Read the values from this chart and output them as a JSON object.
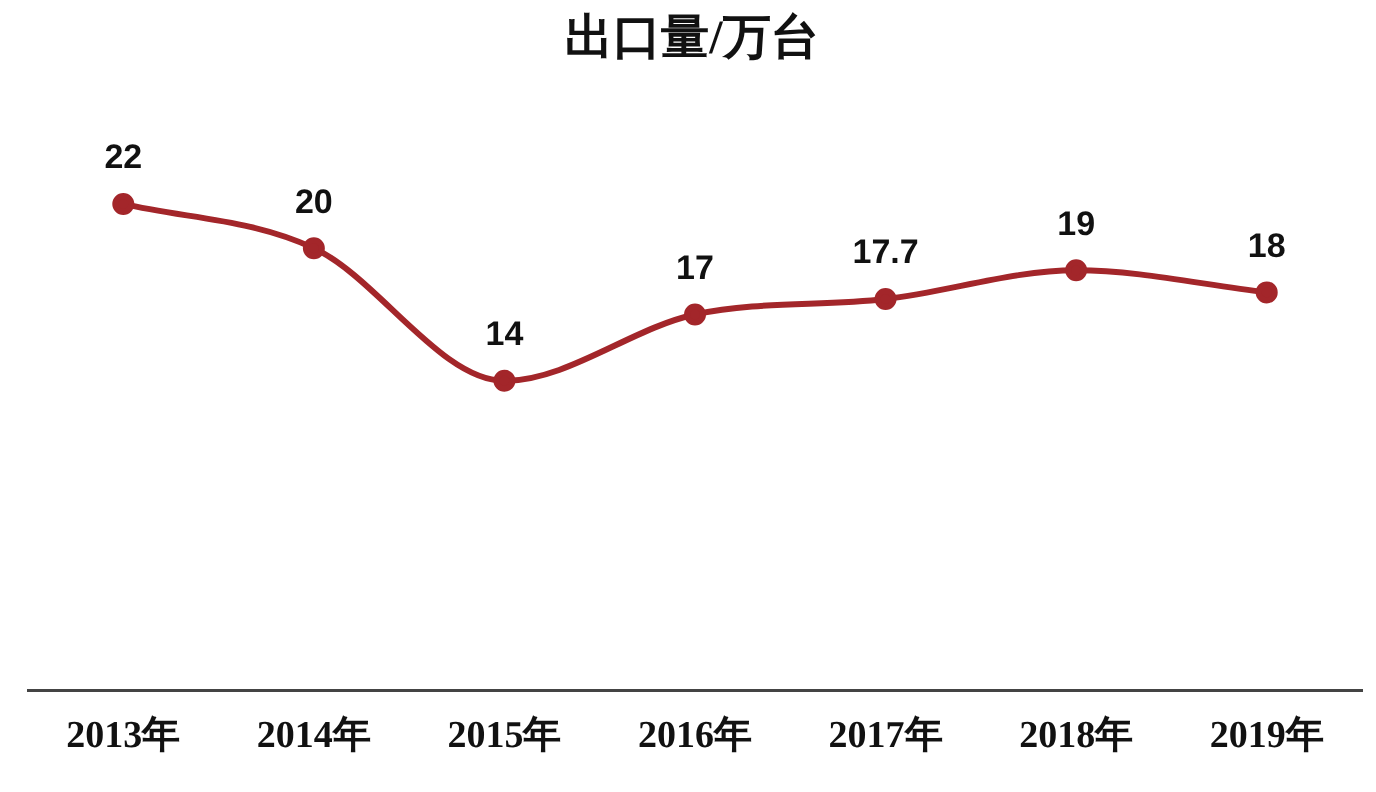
{
  "chart_data": {
    "type": "line",
    "title": "出口量/万台",
    "categories": [
      "2013年",
      "2014年",
      "2015年",
      "2016年",
      "2017年",
      "2018年",
      "2019年"
    ],
    "series": [
      {
        "color": "#a3262a",
        "values": [
          22,
          20,
          14,
          17,
          17.7,
          19,
          18
        ]
      }
    ],
    "tick_labels": "x",
    "grid": false,
    "legend": false,
    "marker": "circle",
    "line_style": "solid",
    "data_labels": true
  }
}
